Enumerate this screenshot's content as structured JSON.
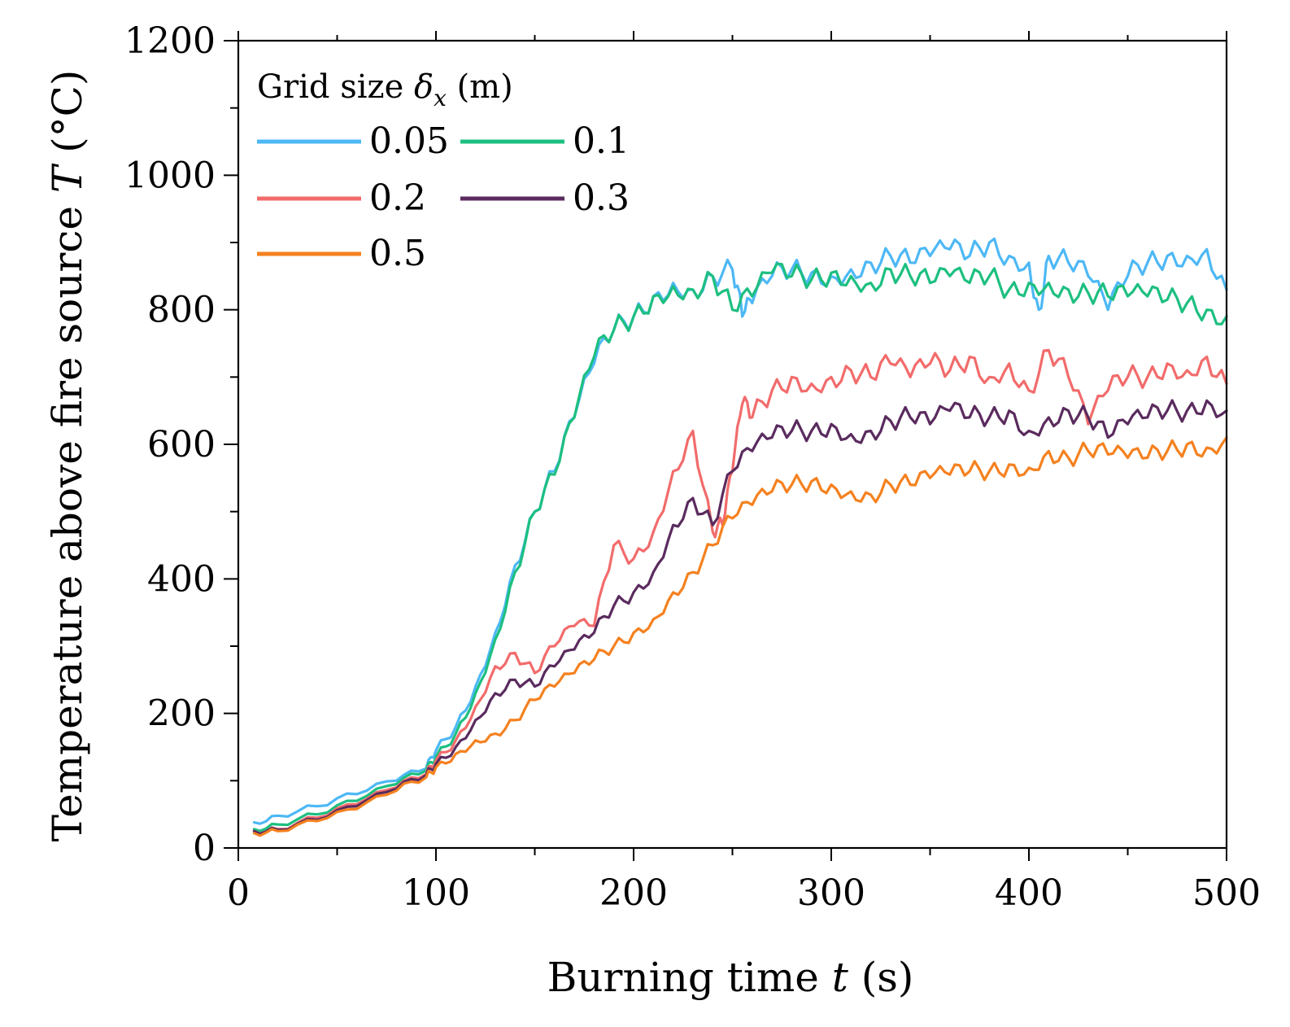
{
  "chart_data": {
    "type": "line",
    "title": "",
    "xlabel_main": "Burning time ",
    "xlabel_var": "t",
    "xlabel_unit": " (s)",
    "ylabel_main": "Temperature above fire source ",
    "ylabel_var": "T",
    "ylabel_unit": " (°C)",
    "xlim": [
      0,
      500
    ],
    "ylim": [
      0,
      1200
    ],
    "xticks": [
      0,
      100,
      200,
      300,
      400,
      500
    ],
    "yticks": [
      0,
      200,
      400,
      600,
      800,
      1000,
      1200
    ],
    "legend": {
      "title_main": "Grid size ",
      "title_var": "δ",
      "title_sub": "x",
      "title_unit": " (m)",
      "position": "top-left",
      "columns": 2
    },
    "series": [
      {
        "name": "0.05",
        "color": "#4db8f5",
        "x": [
          8,
          20,
          40,
          60,
          80,
          95,
          100,
          110,
          120,
          130,
          140,
          150,
          160,
          170,
          180,
          190,
          200,
          210,
          220,
          230,
          240,
          250,
          255,
          260,
          270,
          280,
          290,
          300,
          310,
          320,
          330,
          340,
          350,
          360,
          370,
          380,
          390,
          400,
          405,
          410,
          420,
          430,
          440,
          450,
          460,
          470,
          480,
          490,
          500
        ],
        "y": [
          38,
          48,
          62,
          80,
          100,
          118,
          145,
          180,
          240,
          320,
          420,
          500,
          560,
          640,
          720,
          770,
          790,
          820,
          840,
          830,
          850,
          860,
          790,
          810,
          850,
          860,
          855,
          850,
          860,
          870,
          880,
          870,
          880,
          890,
          880,
          900,
          880,
          870,
          800,
          880,
          870,
          850,
          800,
          850,
          870,
          880,
          880,
          890,
          830
        ]
      },
      {
        "name": "0.1",
        "color": "#1dbf80",
        "x": [
          8,
          20,
          40,
          60,
          80,
          95,
          100,
          110,
          120,
          130,
          140,
          150,
          160,
          170,
          180,
          190,
          200,
          210,
          220,
          230,
          240,
          250,
          260,
          270,
          280,
          290,
          300,
          310,
          320,
          330,
          340,
          350,
          360,
          370,
          380,
          390,
          400,
          410,
          420,
          430,
          440,
          450,
          460,
          470,
          480,
          490,
          500
        ],
        "y": [
          28,
          35,
          50,
          70,
          95,
          115,
          135,
          170,
          230,
          310,
          410,
          500,
          555,
          640,
          730,
          770,
          790,
          820,
          835,
          830,
          850,
          800,
          820,
          855,
          850,
          845,
          855,
          850,
          840,
          860,
          850,
          840,
          850,
          840,
          850,
          830,
          840,
          840,
          830,
          825,
          820,
          820,
          820,
          815,
          810,
          800,
          790
        ]
      },
      {
        "name": "0.2",
        "color": "#f26b6b",
        "x": [
          8,
          20,
          40,
          60,
          80,
          95,
          100,
          110,
          120,
          130,
          140,
          150,
          160,
          170,
          180,
          190,
          200,
          210,
          220,
          230,
          240,
          245,
          250,
          255,
          260,
          270,
          280,
          290,
          300,
          310,
          320,
          330,
          340,
          350,
          360,
          370,
          380,
          390,
          400,
          410,
          420,
          430,
          440,
          450,
          460,
          470,
          480,
          490,
          500
        ],
        "y": [
          25,
          28,
          45,
          65,
          90,
          110,
          130,
          160,
          210,
          270,
          290,
          260,
          300,
          330,
          330,
          450,
          430,
          470,
          560,
          620,
          470,
          480,
          560,
          660,
          640,
          680,
          700,
          690,
          700,
          710,
          700,
          720,
          700,
          720,
          710,
          730,
          700,
          720,
          680,
          740,
          700,
          630,
          680,
          700,
          700,
          720,
          710,
          730,
          690
        ]
      },
      {
        "name": "0.3",
        "color": "#5a2b5e",
        "x": [
          8,
          20,
          40,
          60,
          80,
          95,
          100,
          110,
          120,
          130,
          140,
          150,
          160,
          170,
          180,
          190,
          200,
          210,
          220,
          230,
          240,
          250,
          260,
          270,
          280,
          290,
          300,
          310,
          320,
          330,
          340,
          350,
          360,
          370,
          380,
          390,
          400,
          410,
          420,
          430,
          440,
          450,
          460,
          470,
          480,
          490,
          500
        ],
        "y": [
          25,
          27,
          42,
          62,
          88,
          108,
          125,
          150,
          190,
          230,
          250,
          240,
          270,
          295,
          320,
          360,
          380,
          410,
          480,
          520,
          480,
          560,
          590,
          610,
          620,
          620,
          630,
          615,
          620,
          635,
          640,
          630,
          650,
          640,
          640,
          650,
          620,
          640,
          650,
          640,
          610,
          630,
          640,
          650,
          650,
          665,
          650
        ]
      },
      {
        "name": "0.5",
        "color": "#f5811f",
        "x": [
          8,
          20,
          40,
          60,
          80,
          95,
          100,
          110,
          120,
          130,
          140,
          150,
          160,
          170,
          180,
          190,
          200,
          210,
          220,
          230,
          240,
          250,
          260,
          270,
          280,
          290,
          300,
          310,
          320,
          330,
          340,
          350,
          360,
          370,
          380,
          390,
          400,
          410,
          420,
          430,
          440,
          450,
          460,
          470,
          480,
          490,
          500
        ],
        "y": [
          22,
          25,
          40,
          58,
          85,
          105,
          120,
          140,
          160,
          170,
          190,
          220,
          240,
          260,
          280,
          300,
          320,
          340,
          380,
          410,
          450,
          490,
          510,
          530,
          540,
          545,
          540,
          530,
          525,
          540,
          540,
          550,
          555,
          560,
          560,
          570,
          565,
          590,
          580,
          590,
          585,
          580,
          580,
          590,
          600,
          595,
          610
        ]
      }
    ]
  }
}
